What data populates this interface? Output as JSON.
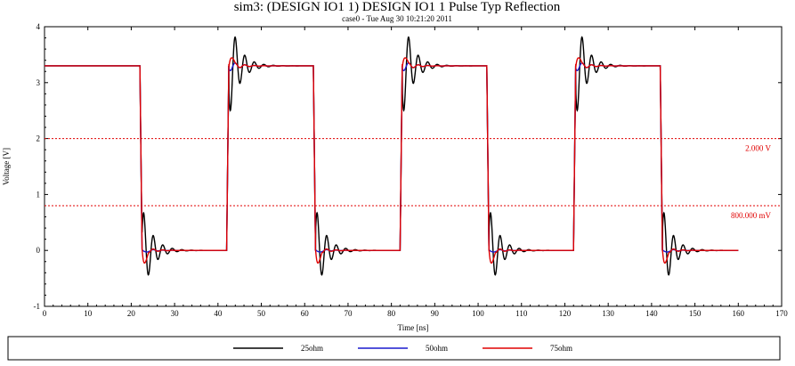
{
  "chart_data": {
    "type": "line",
    "title": "sim3: (DESIGN IO1 1) DESIGN IO1 1 Pulse Typ Reflection",
    "subtitle": "case0 - Tue Aug 30 10:21:20 2011",
    "xlabel": "Time [ns]",
    "ylabel": "Voltage [V]",
    "xlim": [
      0,
      170
    ],
    "ylim": [
      -1,
      4
    ],
    "x_ticks": [
      "0",
      "10",
      "20",
      "30",
      "40",
      "50",
      "60",
      "70",
      "80",
      "90",
      "100",
      "110",
      "120",
      "130",
      "140",
      "150",
      "160",
      "170"
    ],
    "y_ticks": [
      "-1",
      "0",
      "1",
      "2",
      "3",
      "4"
    ],
    "grid": false,
    "legend_position": "bottom",
    "period_ns": 40,
    "first_falling_edge_ns": 22,
    "first_rising_edge_ns": 42,
    "end_time_ns": 160,
    "high_level": 3.3,
    "low_level": 0,
    "reference_lines": [
      {
        "value": 2.0,
        "label": "2.000 V",
        "color": "#e00000"
      },
      {
        "value": 0.8,
        "label": "800.000 mV",
        "color": "#e00000"
      }
    ],
    "series": [
      {
        "name": "25ohm",
        "color": "#000000",
        "low_peak": 0.85,
        "low_trough": -0.1,
        "high_peak": 3.4,
        "high_trough": 2.3
      },
      {
        "name": "50ohm",
        "color": "#1a1acd",
        "low_peak": 0.05,
        "low_trough": -0.1,
        "high_peak": 3.3,
        "high_trough": 3.2
      },
      {
        "name": "75ohm",
        "color": "#e00000",
        "low_peak": 0.1,
        "low_trough": -0.6,
        "high_peak": 3.75,
        "high_trough": 3.2
      }
    ]
  }
}
